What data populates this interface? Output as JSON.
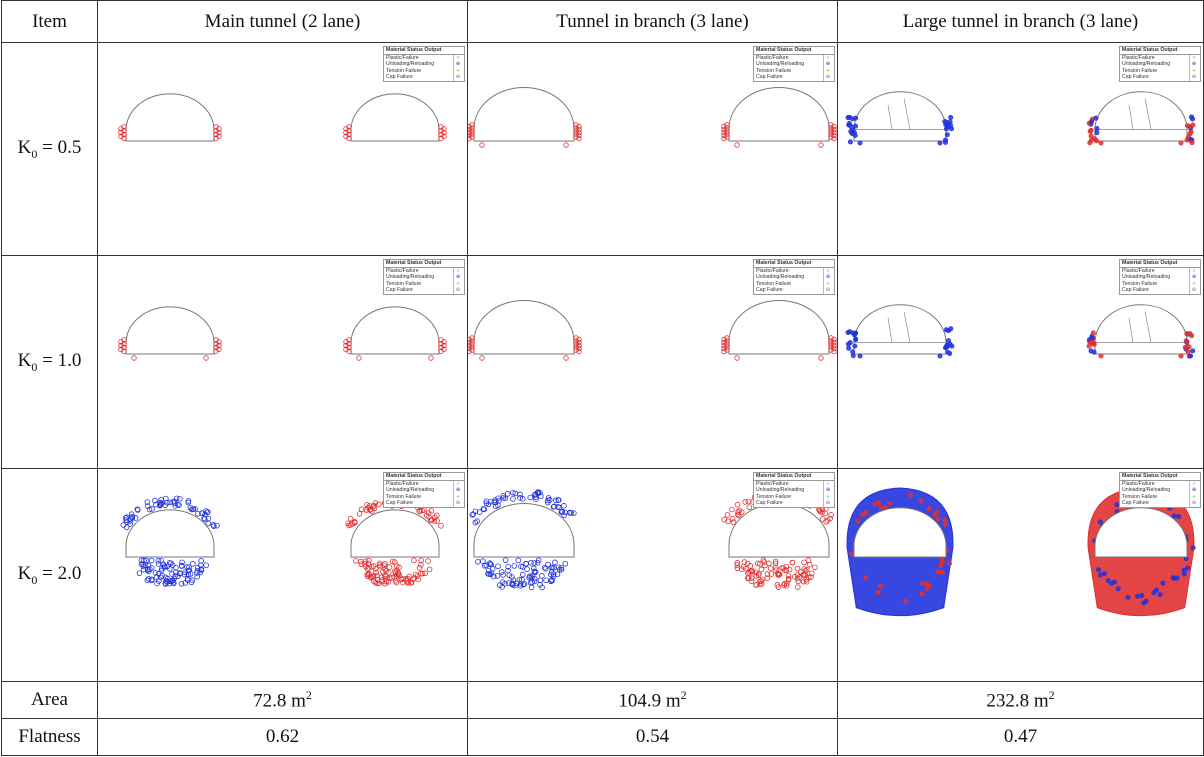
{
  "header": {
    "item": "Item",
    "col1": "Main tunnel (2 lane)",
    "col2": "Tunnel in branch (3 lane)",
    "col3": "Large tunnel in branch (3 lane)"
  },
  "rows": {
    "k05": {
      "prefix": "K",
      "sub": "0",
      "suffix": " = 0.5"
    },
    "k10": {
      "prefix": "K",
      "sub": "0",
      "suffix": " = 1.0"
    },
    "k20": {
      "prefix": "K",
      "sub": "0",
      "suffix": " = 2.0"
    }
  },
  "legend": {
    "title": "Material Status Output",
    "items": [
      "Plastic/Failure",
      "Unloading/Reloading",
      "Tension Failure",
      "Cap Failure"
    ]
  },
  "area": {
    "label": "Area",
    "v1": "72.8 m",
    "v2": "104.9 m",
    "v3": "232.8 m",
    "unit_sup": "2"
  },
  "flatness": {
    "label": "Flatness",
    "v1": "0.62",
    "v2": "0.54",
    "v3": "0.47"
  },
  "colors": {
    "plastic": "#e03030",
    "unloading": "#2233dd",
    "tension": "#33bb33",
    "cap": "#8844aa"
  }
}
